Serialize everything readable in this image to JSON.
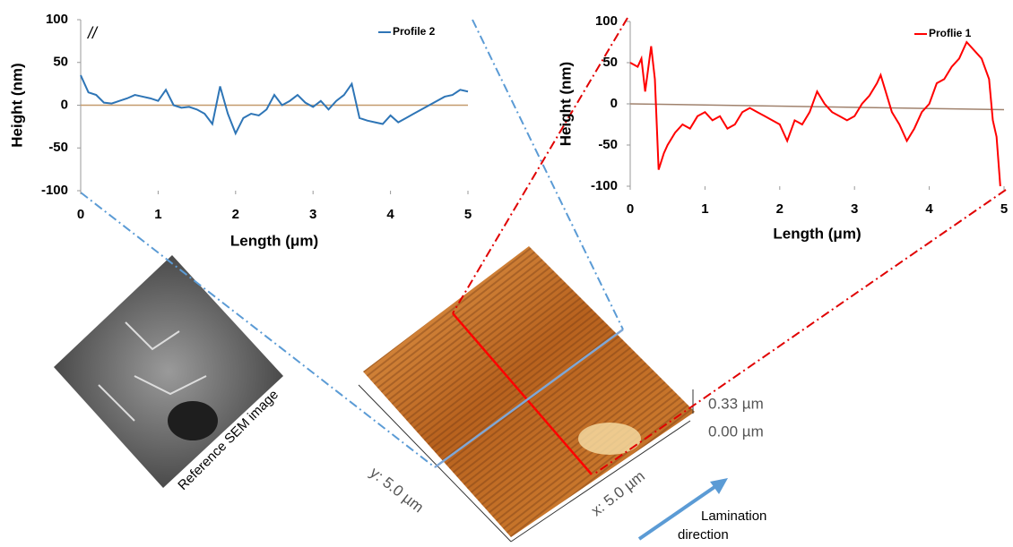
{
  "chart_data": [
    {
      "type": "line",
      "x_label": "Length (μm)",
      "y_label": "Height (nm)",
      "annotation": "//",
      "x": [
        0,
        0.1,
        0.2,
        0.3,
        0.4,
        0.5,
        0.6,
        0.7,
        0.8,
        0.9,
        1.0,
        1.1,
        1.2,
        1.3,
        1.4,
        1.5,
        1.6,
        1.7,
        1.8,
        1.9,
        2.0,
        2.1,
        2.2,
        2.3,
        2.4,
        2.5,
        2.6,
        2.7,
        2.8,
        2.9,
        3.0,
        3.1,
        3.2,
        3.3,
        3.4,
        3.5,
        3.6,
        3.7,
        3.8,
        3.9,
        4.0,
        4.1,
        4.2,
        4.3,
        4.4,
        4.5,
        4.6,
        4.7,
        4.8,
        4.9,
        5.0
      ],
      "series": [
        {
          "name": "Profile 2",
          "color": "#2e75b6",
          "values": [
            35,
            15,
            12,
            3,
            2,
            5,
            8,
            12,
            10,
            8,
            5,
            18,
            0,
            -3,
            -2,
            -5,
            -10,
            -22,
            22,
            -10,
            -33,
            -15,
            -10,
            -12,
            -5,
            12,
            0,
            5,
            12,
            3,
            -2,
            5,
            -5,
            5,
            12,
            25,
            -15,
            -18,
            -20,
            -22,
            -12,
            -20,
            -15,
            -10,
            -5,
            0,
            5,
            10,
            12,
            18,
            16
          ]
        }
      ],
      "trendline": {
        "x": [
          0,
          5
        ],
        "values": [
          0,
          0
        ],
        "color": "#c49a6c"
      },
      "xlim": [
        0,
        5
      ],
      "xticks": [
        0,
        1,
        2,
        3,
        4,
        5
      ],
      "ylim": [
        -100,
        100
      ],
      "yticks": [
        -100,
        -50,
        0,
        50,
        100
      ],
      "legend": "upper right"
    },
    {
      "type": "line",
      "x_label": "Length (μm)",
      "y_label": "Height (nm)",
      "x": [
        0,
        0.1,
        0.15,
        0.2,
        0.28,
        0.33,
        0.38,
        0.45,
        0.5,
        0.6,
        0.7,
        0.8,
        0.9,
        1.0,
        1.1,
        1.2,
        1.3,
        1.4,
        1.5,
        1.6,
        1.7,
        1.8,
        1.9,
        2.0,
        2.1,
        2.2,
        2.3,
        2.4,
        2.5,
        2.6,
        2.7,
        2.8,
        2.9,
        3.0,
        3.1,
        3.2,
        3.3,
        3.35,
        3.4,
        3.5,
        3.6,
        3.7,
        3.8,
        3.9,
        4.0,
        4.1,
        4.2,
        4.3,
        4.4,
        4.5,
        4.6,
        4.7,
        4.8,
        4.85,
        4.9,
        4.95
      ],
      "series": [
        {
          "name": "Proflie 1",
          "color": "#ff0000",
          "values": [
            50,
            45,
            55,
            15,
            70,
            30,
            -80,
            -60,
            -50,
            -35,
            -25,
            -30,
            -15,
            -10,
            -20,
            -15,
            -30,
            -25,
            -10,
            -5,
            -10,
            -15,
            -20,
            -25,
            -45,
            -20,
            -25,
            -10,
            15,
            0,
            -10,
            -15,
            -20,
            -15,
            0,
            10,
            25,
            35,
            20,
            -10,
            -25,
            -45,
            -30,
            -10,
            0,
            25,
            30,
            45,
            55,
            75,
            65,
            55,
            30,
            -20,
            -40,
            -100
          ]
        }
      ],
      "trendline": {
        "x": [
          0,
          5
        ],
        "values": [
          0,
          -7
        ],
        "color": "#a0826d"
      },
      "xlim": [
        0,
        5
      ],
      "xticks": [
        0,
        1,
        2,
        3,
        4,
        5
      ],
      "ylim": [
        -100,
        100
      ],
      "yticks": [
        -100,
        -50,
        0,
        50,
        100
      ],
      "legend": "upper right"
    }
  ],
  "annotations": {
    "sem_label": "Reference SEM image",
    "y_size": "y: 5.0 µm",
    "x_size": "x: 5.0 µm",
    "z_max": "0.33 µm",
    "z_min": "0.00 µm",
    "direction_line1": "Lamination",
    "direction_line2": "direction"
  }
}
